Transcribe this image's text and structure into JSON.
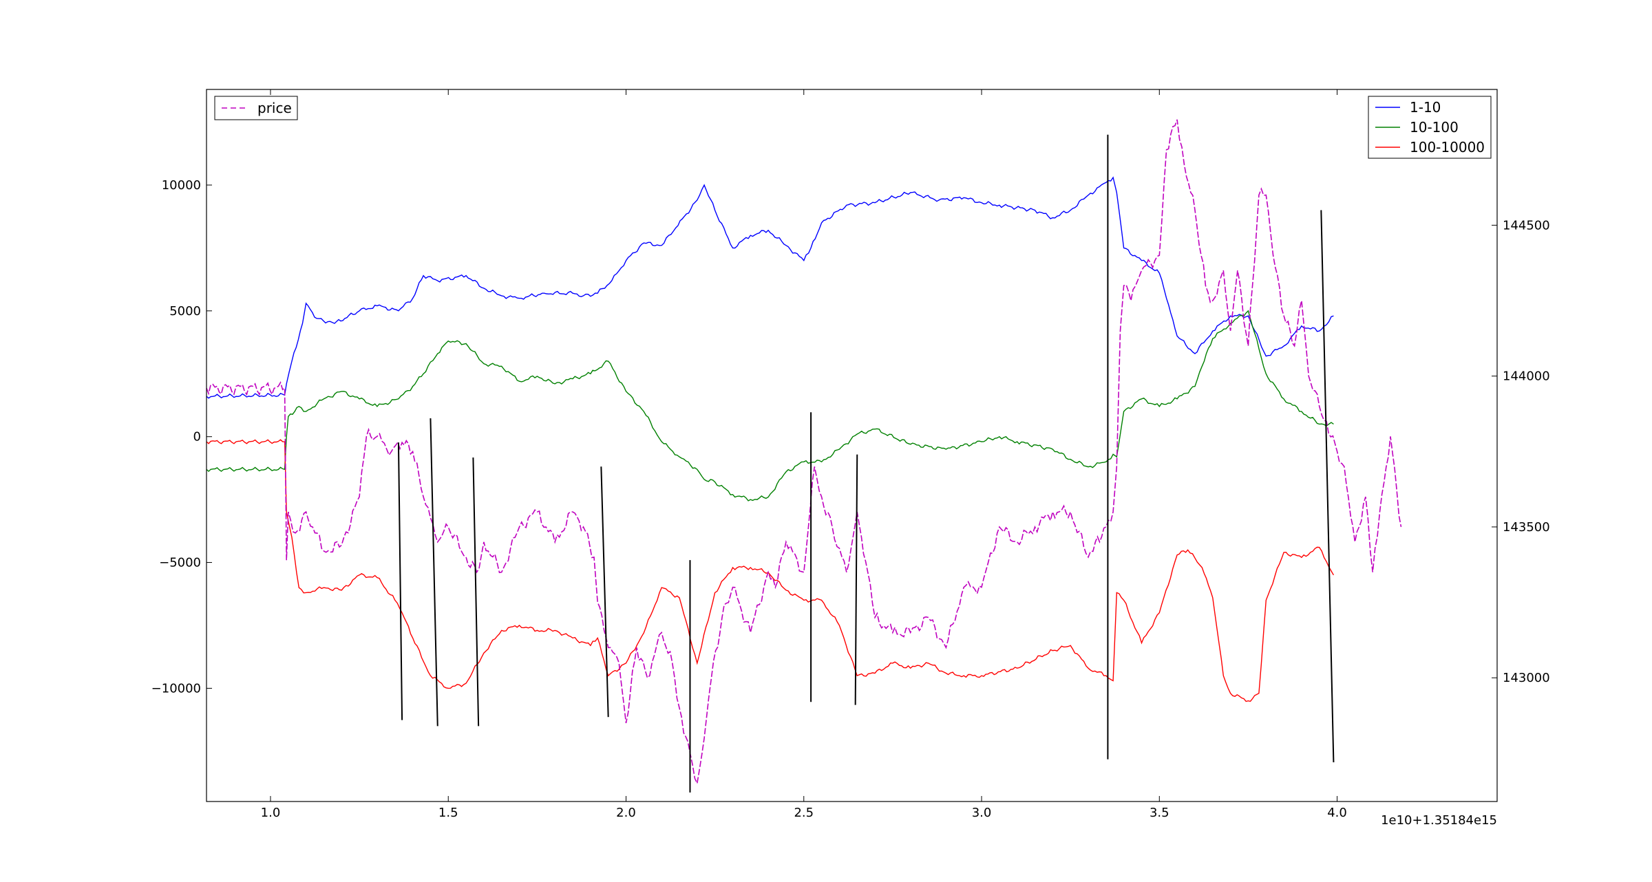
{
  "chart_data": {
    "type": "line",
    "x_offset_label": "1e10+1.35184e15",
    "x_ticks": [
      {
        "value": 1.0,
        "label": "1.0"
      },
      {
        "value": 1.5,
        "label": "1.5"
      },
      {
        "value": 2.0,
        "label": "2.0"
      },
      {
        "value": 2.5,
        "label": "2.5"
      },
      {
        "value": 3.0,
        "label": "3.0"
      },
      {
        "value": 3.5,
        "label": "3.5"
      },
      {
        "value": 4.0,
        "label": "4.0"
      }
    ],
    "xlim": [
      0.82,
      4.45
    ],
    "ylim_left": [
      -14500,
      13800
    ],
    "ylim_right": [
      142590,
      144950
    ],
    "y_ticks_left": [
      {
        "value": 10000,
        "label": "10000"
      },
      {
        "value": 5000,
        "label": "5000"
      },
      {
        "value": 0,
        "label": "0"
      },
      {
        "value": -5000,
        "label": "−5000"
      },
      {
        "value": -10000,
        "label": "−10000"
      }
    ],
    "y_ticks_right": [
      {
        "value": 144500,
        "label": "144500"
      },
      {
        "value": 144000,
        "label": "144000"
      },
      {
        "value": 143500,
        "label": "143500"
      },
      {
        "value": 143000,
        "label": "143000"
      }
    ],
    "legend_left": {
      "placement": "top-left",
      "entries": [
        {
          "name": "price",
          "color": "#bf00bf",
          "dashed": true
        }
      ]
    },
    "legend_right": {
      "placement": "top-right",
      "entries": [
        {
          "name": "1-10",
          "color": "#0000ff"
        },
        {
          "name": "10-100",
          "color": "#008000"
        },
        {
          "name": "100-10000",
          "color": "#ff0000"
        }
      ]
    },
    "grid": false,
    "series": [
      {
        "name": "1-10",
        "axis": "left",
        "color": "#0000ff",
        "x": [
          0.82,
          1.04,
          1.045,
          1.06,
          1.09,
          1.1,
          1.13,
          1.18,
          1.25,
          1.3,
          1.36,
          1.4,
          1.43,
          1.47,
          1.55,
          1.6,
          1.65,
          1.7,
          1.77,
          1.85,
          1.88,
          1.92,
          1.96,
          2.0,
          2.05,
          2.1,
          2.14,
          2.2,
          2.22,
          2.25,
          2.3,
          2.35,
          2.4,
          2.45,
          2.5,
          2.52,
          2.55,
          2.62,
          2.7,
          2.8,
          2.88,
          2.95,
          3.0,
          3.05,
          3.15,
          3.2,
          3.25,
          3.3,
          3.35,
          3.37,
          3.38,
          3.4,
          3.45,
          3.5,
          3.52,
          3.55,
          3.6,
          3.65,
          3.7,
          3.75,
          3.8,
          3.85,
          3.9,
          3.95,
          3.99
        ],
        "y": [
          1600,
          1650,
          2100,
          3000,
          4500,
          5300,
          4700,
          4500,
          5000,
          5200,
          5000,
          5500,
          6400,
          6200,
          6400,
          5900,
          5600,
          5500,
          5700,
          5700,
          5600,
          5700,
          6200,
          7000,
          7700,
          7600,
          8300,
          9400,
          10000,
          9000,
          7500,
          8000,
          8200,
          7600,
          7000,
          7500,
          8500,
          9200,
          9300,
          9700,
          9400,
          9500,
          9300,
          9200,
          9000,
          8700,
          9000,
          9600,
          10100,
          10300,
          9700,
          7500,
          7000,
          6500,
          5500,
          4000,
          3300,
          4200,
          4800,
          4800,
          3200,
          3600,
          4400,
          4200,
          4800
        ]
      },
      {
        "name": "10-100",
        "axis": "left",
        "color": "#008000",
        "x": [
          0.82,
          1.04,
          1.045,
          1.05,
          1.08,
          1.1,
          1.15,
          1.2,
          1.25,
          1.3,
          1.36,
          1.4,
          1.43,
          1.47,
          1.5,
          1.55,
          1.6,
          1.65,
          1.7,
          1.75,
          1.8,
          1.85,
          1.9,
          1.95,
          2.0,
          2.05,
          2.1,
          2.15,
          2.2,
          2.22,
          2.25,
          2.3,
          2.35,
          2.4,
          2.45,
          2.5,
          2.55,
          2.6,
          2.65,
          2.7,
          2.8,
          2.9,
          3.0,
          3.05,
          3.1,
          3.2,
          3.25,
          3.3,
          3.35,
          3.37,
          3.38,
          3.4,
          3.45,
          3.5,
          3.55,
          3.6,
          3.62,
          3.65,
          3.7,
          3.75,
          3.78,
          3.8,
          3.85,
          3.9,
          3.95,
          3.99
        ],
        "y": [
          -1300,
          -1300,
          0,
          800,
          1200,
          1000,
          1500,
          1800,
          1500,
          1200,
          1500,
          2000,
          2500,
          3300,
          3800,
          3700,
          2900,
          2800,
          2200,
          2400,
          2100,
          2300,
          2500,
          3000,
          1800,
          1000,
          -200,
          -800,
          -1300,
          -1700,
          -1800,
          -2300,
          -2500,
          -2400,
          -1400,
          -1000,
          -1000,
          -500,
          100,
          300,
          -300,
          -500,
          -200,
          0,
          -200,
          -500,
          -900,
          -1200,
          -1000,
          -700,
          -800,
          1000,
          1500,
          1200,
          1500,
          2000,
          2800,
          3900,
          4500,
          5000,
          3500,
          2500,
          1500,
          1000,
          500,
          500
        ]
      },
      {
        "name": "100-10000",
        "axis": "left",
        "color": "#ff0000",
        "x": [
          0.82,
          1.04,
          1.045,
          1.06,
          1.08,
          1.1,
          1.15,
          1.2,
          1.25,
          1.3,
          1.35,
          1.37,
          1.4,
          1.45,
          1.5,
          1.55,
          1.6,
          1.65,
          1.7,
          1.75,
          1.8,
          1.85,
          1.9,
          1.92,
          1.95,
          2.0,
          2.05,
          2.1,
          2.15,
          2.2,
          2.25,
          2.3,
          2.35,
          2.4,
          2.45,
          2.5,
          2.55,
          2.6,
          2.65,
          2.7,
          2.75,
          2.8,
          2.85,
          2.9,
          2.95,
          3.0,
          3.1,
          3.2,
          3.25,
          3.3,
          3.35,
          3.37,
          3.38,
          3.4,
          3.45,
          3.5,
          3.55,
          3.58,
          3.62,
          3.65,
          3.68,
          3.7,
          3.75,
          3.78,
          3.8,
          3.85,
          3.9,
          3.95,
          3.99
        ],
        "y": [
          -200,
          -200,
          -3000,
          -4000,
          -6000,
          -6200,
          -6000,
          -6100,
          -5500,
          -5600,
          -6500,
          -7000,
          -8000,
          -9500,
          -10000,
          -9800,
          -8600,
          -7700,
          -7500,
          -7700,
          -7700,
          -8000,
          -8300,
          -8000,
          -9500,
          -9000,
          -7800,
          -6000,
          -6400,
          -9000,
          -6200,
          -5200,
          -5200,
          -5400,
          -6100,
          -6500,
          -6500,
          -7500,
          -9500,
          -9400,
          -9000,
          -9200,
          -9000,
          -9400,
          -9500,
          -9500,
          -9200,
          -8500,
          -8300,
          -9200,
          -9500,
          -9700,
          -6200,
          -6500,
          -8200,
          -7000,
          -4700,
          -4500,
          -5200,
          -6400,
          -9500,
          -10200,
          -10500,
          -10200,
          -6500,
          -4600,
          -4800,
          -4400,
          -5500
        ]
      },
      {
        "name": "price",
        "axis": "right",
        "color": "#bf00bf",
        "dashed": true,
        "x": [
          0.82,
          1.04,
          1.045,
          1.05,
          1.07,
          1.1,
          1.15,
          1.2,
          1.25,
          1.27,
          1.3,
          1.34,
          1.37,
          1.4,
          1.43,
          1.47,
          1.5,
          1.55,
          1.58,
          1.6,
          1.65,
          1.7,
          1.75,
          1.8,
          1.85,
          1.88,
          1.91,
          1.92,
          1.95,
          1.98,
          2.0,
          2.03,
          2.06,
          2.1,
          2.13,
          2.15,
          2.18,
          2.2,
          2.22,
          2.24,
          2.27,
          2.3,
          2.35,
          2.4,
          2.42,
          2.45,
          2.5,
          2.53,
          2.55,
          2.58,
          2.62,
          2.65,
          2.68,
          2.7,
          2.75,
          2.8,
          2.85,
          2.9,
          2.95,
          3.0,
          3.05,
          3.1,
          3.15,
          3.2,
          3.25,
          3.3,
          3.32,
          3.35,
          3.37,
          3.38,
          3.39,
          3.4,
          3.42,
          3.45,
          3.5,
          3.52,
          3.55,
          3.57,
          3.6,
          3.63,
          3.65,
          3.68,
          3.7,
          3.72,
          3.75,
          3.78,
          3.8,
          3.82,
          3.85,
          3.88,
          3.9,
          3.92,
          3.95,
          3.97,
          4.0,
          4.02,
          4.05,
          4.08,
          4.1,
          4.12,
          4.15,
          4.18
        ],
        "y": [
          143960,
          143960,
          143390,
          143550,
          143480,
          143550,
          143420,
          143440,
          143600,
          143800,
          143800,
          143750,
          143780,
          143750,
          143600,
          143450,
          143500,
          143400,
          143350,
          143450,
          143350,
          143500,
          143550,
          143450,
          143550,
          143500,
          143400,
          143250,
          143100,
          143050,
          142850,
          143100,
          143000,
          143150,
          143050,
          142900,
          142750,
          142650,
          142800,
          143000,
          143200,
          143300,
          143150,
          143350,
          143300,
          143450,
          143350,
          143700,
          143600,
          143500,
          143350,
          143550,
          143350,
          143200,
          143150,
          143150,
          143200,
          143100,
          143300,
          143300,
          143500,
          143450,
          143500,
          143550,
          143550,
          143400,
          143450,
          143500,
          143550,
          143700,
          144150,
          144300,
          144250,
          144350,
          144400,
          144750,
          144850,
          144700,
          144550,
          144300,
          144250,
          144350,
          144150,
          144350,
          144100,
          144600,
          144600,
          144400,
          144200,
          144100,
          144250,
          144000,
          143900,
          143850,
          143750,
          143700,
          143450,
          143600,
          143350,
          143550,
          143800,
          143500
        ]
      }
    ],
    "vertical_segments": [
      {
        "x1": 1.36,
        "y1": 143780,
        "x2": 1.37,
        "y2": 142860
      },
      {
        "x1": 1.45,
        "y1": 143860,
        "x2": 1.47,
        "y2": 142840
      },
      {
        "x1": 1.57,
        "y1": 143730,
        "x2": 1.585,
        "y2": 142840
      },
      {
        "x1": 1.93,
        "y1": 143700,
        "x2": 1.95,
        "y2": 142870
      },
      {
        "x1": 2.18,
        "y1": 143390,
        "x2": 2.18,
        "y2": 142620
      },
      {
        "x1": 2.52,
        "y1": 143880,
        "x2": 2.52,
        "y2": 142920
      },
      {
        "x1": 2.65,
        "y1": 143740,
        "x2": 2.645,
        "y2": 142910
      },
      {
        "x1": 3.355,
        "y1": 144800,
        "x2": 3.355,
        "y2": 142730
      },
      {
        "x1": 3.955,
        "y1": 144550,
        "x2": 3.99,
        "y2": 142720
      }
    ]
  }
}
